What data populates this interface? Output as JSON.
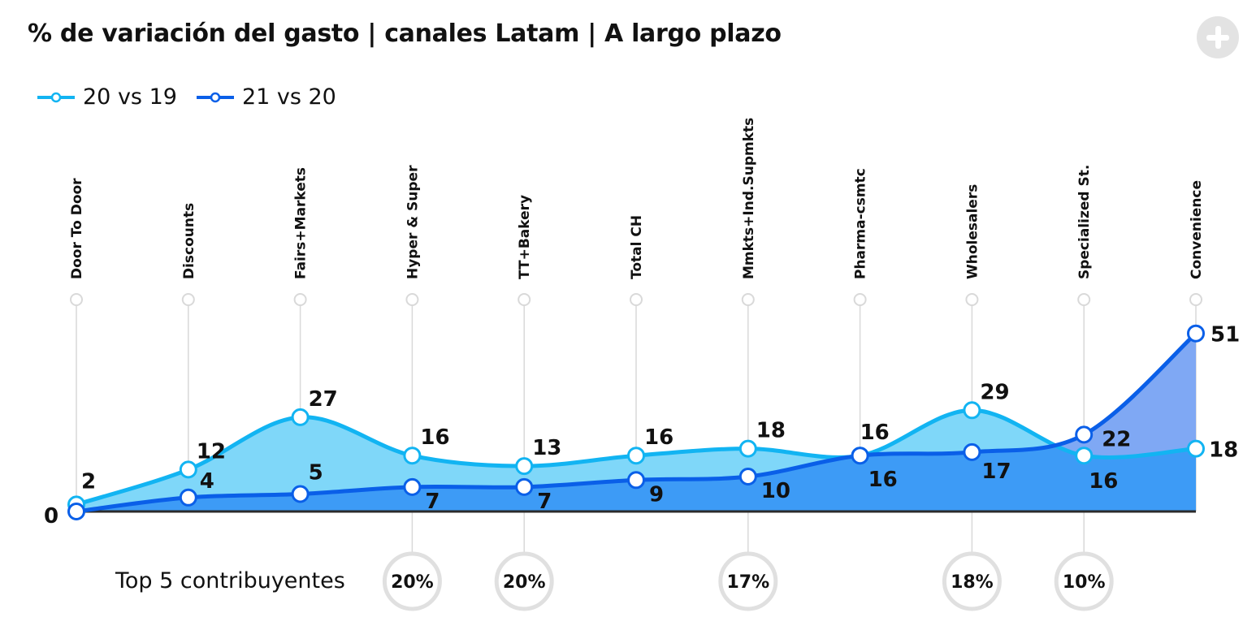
{
  "title": "% de variación del gasto | canales Latam | A largo plazo",
  "add_icon": "plus-circle-icon",
  "colors": {
    "series1": "#12b4f2",
    "series1_fill": "#7fd7f9",
    "series2": "#0a5fe8",
    "series2_fill": "#3d9bf6",
    "series2_fill_top": "#7fa8f4",
    "axis": "#2b2b2b",
    "grid": "#d9d9d9",
    "contrib_ring": "#e0e0e0"
  },
  "chart_data": {
    "type": "area",
    "categories": [
      "Door To Door",
      "Discounts",
      "Fairs+Markets",
      "Hyper & Super",
      "TT+Bakery",
      "Total CH",
      "Mmkts+Ind.Supmkts",
      "Pharma-csmtc",
      "Wholesalers",
      "Specialized St.",
      "Convenience"
    ],
    "series": [
      {
        "name": "20 vs 19",
        "values": [
          2,
          12,
          27,
          16,
          13,
          16,
          18,
          16,
          29,
          16,
          18
        ]
      },
      {
        "name": "21 vs 20",
        "values": [
          0,
          4,
          5,
          7,
          7,
          9,
          10,
          16,
          17,
          22,
          51
        ]
      }
    ],
    "baseline_label": "0",
    "ylim": [
      0,
      51
    ],
    "legend_position": "top-left"
  },
  "contributors": {
    "label": "Top 5 contribuyentes",
    "items": [
      {
        "category_index": 3,
        "value": "20%"
      },
      {
        "category_index": 4,
        "value": "20%"
      },
      {
        "category_index": 6,
        "value": "17%"
      },
      {
        "category_index": 8,
        "value": "18%"
      },
      {
        "category_index": 9,
        "value": "10%"
      }
    ]
  }
}
